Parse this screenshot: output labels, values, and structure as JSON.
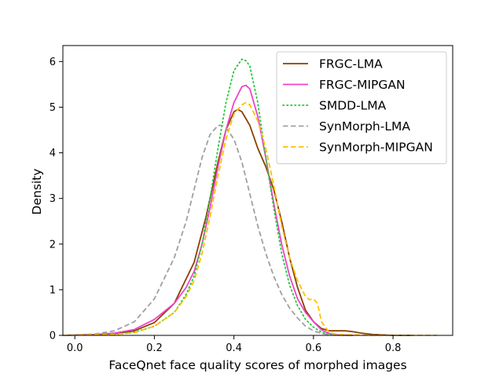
{
  "chart_data": {
    "type": "line",
    "subtype": "kde-density",
    "title": "",
    "xlabel": "FaceQnet face quality scores of morphed images",
    "ylabel": "Density",
    "xlim": [
      -0.03,
      0.95
    ],
    "ylim": [
      0,
      6.35
    ],
    "x_ticks": [
      0.0,
      0.2,
      0.4,
      0.6,
      0.8
    ],
    "x_tick_labels": [
      "0.0",
      "0.2",
      "0.4",
      "0.6",
      "0.8"
    ],
    "y_ticks": [
      0,
      1,
      2,
      3,
      4,
      5,
      6
    ],
    "y_tick_labels": [
      "0",
      "1",
      "2",
      "3",
      "4",
      "5",
      "6"
    ],
    "grid": false,
    "legend_position": "top-right",
    "series": [
      {
        "name": "FRGC-LMA",
        "color": "#8B4000",
        "dash": "solid",
        "x": [
          -0.03,
          0.05,
          0.1,
          0.15,
          0.2,
          0.25,
          0.3,
          0.33,
          0.36,
          0.38,
          0.4,
          0.41,
          0.42,
          0.44,
          0.46,
          0.48,
          0.5,
          0.52,
          0.54,
          0.56,
          0.58,
          0.6,
          0.62,
          0.64,
          0.66,
          0.68,
          0.7,
          0.72,
          0.75,
          0.8,
          0.85
        ],
        "y": [
          0.0,
          0.02,
          0.04,
          0.1,
          0.28,
          0.7,
          1.6,
          2.6,
          3.8,
          4.5,
          4.9,
          4.95,
          4.9,
          4.6,
          4.1,
          3.7,
          3.2,
          2.5,
          1.7,
          1.05,
          0.55,
          0.3,
          0.15,
          0.1,
          0.1,
          0.1,
          0.08,
          0.05,
          0.02,
          0.0,
          0.0
        ]
      },
      {
        "name": "FRGC-MIPGAN",
        "color": "#EE44C8",
        "dash": "solid",
        "x": [
          -0.03,
          0.05,
          0.1,
          0.15,
          0.2,
          0.25,
          0.28,
          0.3,
          0.32,
          0.34,
          0.36,
          0.38,
          0.4,
          0.42,
          0.43,
          0.44,
          0.46,
          0.48,
          0.5,
          0.52,
          0.54,
          0.56,
          0.58,
          0.6,
          0.62,
          0.64,
          0.66,
          0.7
        ],
        "y": [
          0.0,
          0.02,
          0.05,
          0.13,
          0.35,
          0.7,
          1.05,
          1.4,
          2.0,
          2.8,
          3.7,
          4.5,
          5.1,
          5.45,
          5.48,
          5.4,
          4.8,
          3.9,
          2.9,
          2.0,
          1.3,
          0.8,
          0.5,
          0.3,
          0.12,
          0.04,
          0.01,
          0.0
        ]
      },
      {
        "name": "SMDD-LMA",
        "color": "#22C93A",
        "dash": "dotted",
        "x": [
          -0.03,
          0.1,
          0.15,
          0.2,
          0.25,
          0.28,
          0.3,
          0.32,
          0.34,
          0.36,
          0.38,
          0.4,
          0.42,
          0.43,
          0.44,
          0.46,
          0.48,
          0.5,
          0.52,
          0.54,
          0.56,
          0.58,
          0.6,
          0.62,
          0.64,
          0.66,
          0.7
        ],
        "y": [
          0.0,
          0.02,
          0.07,
          0.2,
          0.5,
          0.9,
          1.3,
          2.0,
          3.0,
          4.1,
          5.1,
          5.8,
          6.05,
          6.02,
          5.9,
          5.1,
          3.9,
          2.8,
          1.8,
          1.1,
          0.65,
          0.35,
          0.18,
          0.07,
          0.02,
          0.0,
          0.0
        ]
      },
      {
        "name": "SynMorph-LMA",
        "color": "#A0A0A0",
        "dash": "dashed",
        "x": [
          -0.03,
          0.05,
          0.1,
          0.15,
          0.2,
          0.25,
          0.28,
          0.3,
          0.32,
          0.34,
          0.36,
          0.37,
          0.38,
          0.4,
          0.42,
          0.44,
          0.46,
          0.48,
          0.5,
          0.52,
          0.54,
          0.56,
          0.58,
          0.6,
          0.62,
          0.65,
          0.7
        ],
        "y": [
          0.0,
          0.03,
          0.1,
          0.3,
          0.8,
          1.7,
          2.5,
          3.2,
          3.9,
          4.4,
          4.6,
          4.6,
          4.55,
          4.3,
          3.8,
          3.1,
          2.4,
          1.8,
          1.3,
          0.9,
          0.6,
          0.38,
          0.2,
          0.1,
          0.04,
          0.01,
          0.0
        ]
      },
      {
        "name": "SynMorph-MIPGAN",
        "color": "#FFC000",
        "dash": "dashed",
        "x": [
          -0.03,
          0.1,
          0.15,
          0.2,
          0.25,
          0.28,
          0.3,
          0.32,
          0.34,
          0.36,
          0.38,
          0.4,
          0.42,
          0.43,
          0.44,
          0.46,
          0.48,
          0.5,
          0.52,
          0.54,
          0.56,
          0.58,
          0.59,
          0.6,
          0.61,
          0.62,
          0.64,
          0.66,
          0.7,
          0.75,
          0.8,
          0.88,
          0.91
        ],
        "y": [
          0.0,
          0.02,
          0.06,
          0.2,
          0.5,
          0.85,
          1.2,
          1.8,
          2.6,
          3.5,
          4.3,
          4.85,
          5.05,
          5.1,
          5.05,
          4.7,
          4.1,
          3.3,
          2.4,
          1.7,
          1.2,
          0.85,
          0.78,
          0.8,
          0.7,
          0.3,
          0.06,
          0.02,
          0.01,
          0.0,
          0.0,
          0.0,
          0.0
        ]
      }
    ]
  }
}
